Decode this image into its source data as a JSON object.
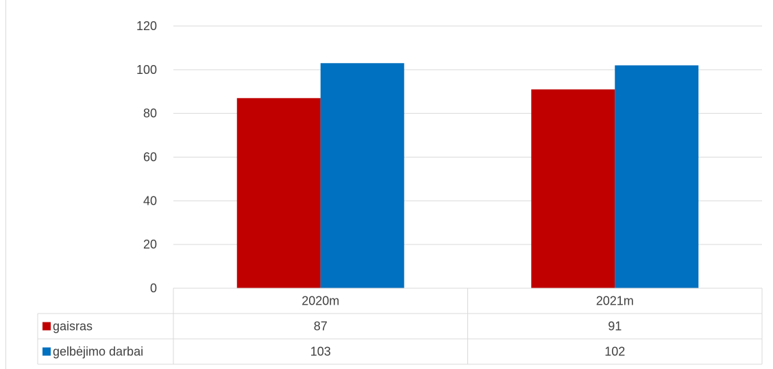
{
  "chart_data": {
    "type": "bar",
    "title": "",
    "xlabel": "",
    "ylabel": "",
    "categories": [
      "2020m",
      "2021m"
    ],
    "series": [
      {
        "name": "gaisras",
        "values": [
          87,
          91
        ],
        "color": "#c00000"
      },
      {
        "name": "gelbėjimo darbai",
        "values": [
          103,
          102
        ],
        "color": "#0070c0"
      }
    ],
    "ylim": [
      0,
      120
    ],
    "yticks": [
      "0",
      "20",
      "40",
      "60",
      "80",
      "100",
      "120"
    ],
    "grid": true,
    "legend": "data-table",
    "data_table": true
  }
}
